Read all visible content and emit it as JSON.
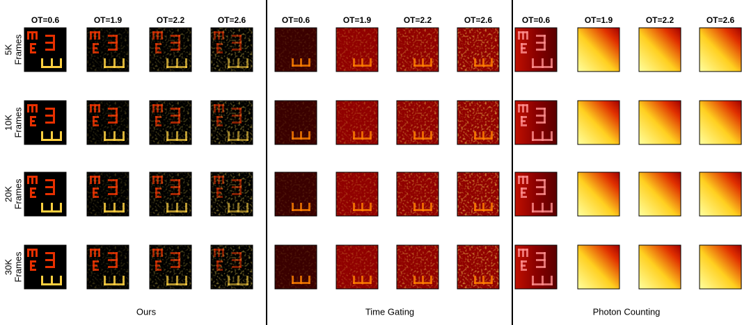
{
  "column_headers": [
    "OT=0.6",
    "OT=1.9",
    "OT=2.2",
    "OT=2.6",
    "OT=0.6",
    "OT=1.9",
    "OT=2.2",
    "OT=2.6",
    "OT=0.6",
    "OT=1.9",
    "OT=2.2",
    "OT=2.6"
  ],
  "row_labels": [
    [
      "5K",
      "Frames"
    ],
    [
      "10K",
      "Frames"
    ],
    [
      "20K",
      "Frames"
    ],
    [
      "30K",
      "Frames"
    ]
  ],
  "method_labels": [
    "Ours",
    "Time Gating",
    "Photon Counting"
  ]
}
